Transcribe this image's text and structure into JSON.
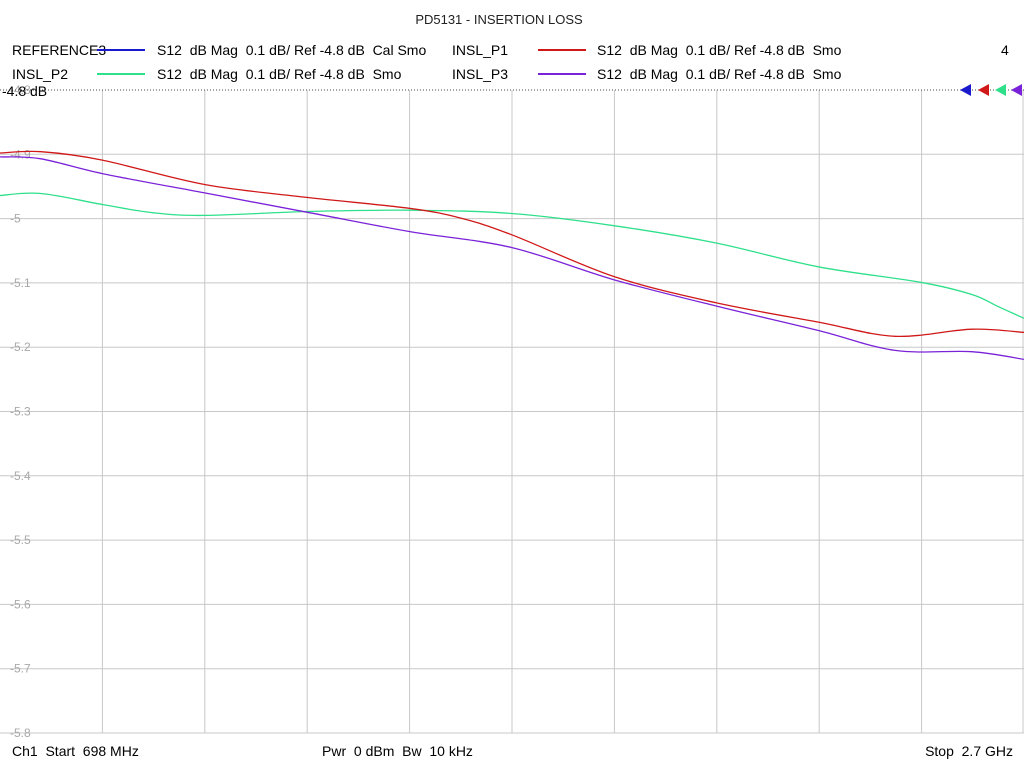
{
  "title": "PD5131 - INSERTION LOSS",
  "channel_number": "4",
  "reference_label": "-4.8 dB",
  "footer": {
    "start": "Ch1  Start  698 MHz",
    "power": "Pwr  0 dBm  Bw  10 kHz",
    "stop": "Stop  2.7 GHz"
  },
  "colors": {
    "REFERENCE3": "#1a1acc",
    "INSL_P1": "#d01818",
    "INSL_P2": "#2ee08a",
    "INSL_P3": "#7a22d8",
    "grid": "#c8c8c8",
    "tick_label": "#a8a8a8"
  },
  "chart_data": {
    "type": "line",
    "title": "PD5131 - INSERTION LOSS",
    "x_start_mhz": 698,
    "x_stop_mhz": 2700,
    "x_divisions": 10,
    "ylim": [
      -5.8,
      -4.8
    ],
    "ytick_labels": [
      "-4.8",
      "-4.9",
      "-5",
      "-5.1",
      "-5.2",
      "-5.3",
      "-5.4",
      "-5.5",
      "-5.6",
      "-5.7",
      "-5.8"
    ],
    "grid": true,
    "legend_placement": "top",
    "series": [
      {
        "name": "REFERENCE3",
        "description": "S12  dB Mag  0.1 dB/ Ref -4.8 dB  Cal Smo",
        "x": [],
        "values": []
      },
      {
        "name": "INSL_P1",
        "description": "S12  dB Mag  0.1 dB/ Ref -4.8 dB  Smo",
        "x": [
          698,
          778,
          898,
          1098,
          1298,
          1498,
          1598,
          1698,
          1898,
          2098,
          2298,
          2448,
          2598,
          2700
        ],
        "values": [
          -4.898,
          -4.896,
          -4.909,
          -4.947,
          -4.967,
          -4.984,
          -4.999,
          -5.025,
          -5.09,
          -5.131,
          -5.161,
          -5.183,
          -5.172,
          -5.177
        ]
      },
      {
        "name": "INSL_P2",
        "description": "S12  dB Mag  0.1 dB/ Ref -4.8 dB  Smo",
        "x": [
          698,
          778,
          898,
          998,
          1098,
          1298,
          1498,
          1698,
          1898,
          2098,
          2298,
          2498,
          2598,
          2650,
          2700
        ],
        "values": [
          -4.964,
          -4.961,
          -4.978,
          -4.991,
          -4.995,
          -4.989,
          -4.987,
          -4.992,
          -5.011,
          -5.038,
          -5.075,
          -5.099,
          -5.118,
          -5.137,
          -5.155
        ]
      },
      {
        "name": "INSL_P3",
        "description": "S12  dB Mag  0.1 dB/ Ref -4.8 dB  Smo",
        "x": [
          698,
          778,
          898,
          1098,
          1298,
          1498,
          1698,
          1898,
          2098,
          2298,
          2448,
          2598,
          2700
        ],
        "values": [
          -4.904,
          -4.907,
          -4.93,
          -4.96,
          -4.99,
          -5.02,
          -5.045,
          -5.095,
          -5.136,
          -5.174,
          -5.205,
          -5.207,
          -5.219
        ]
      }
    ]
  }
}
